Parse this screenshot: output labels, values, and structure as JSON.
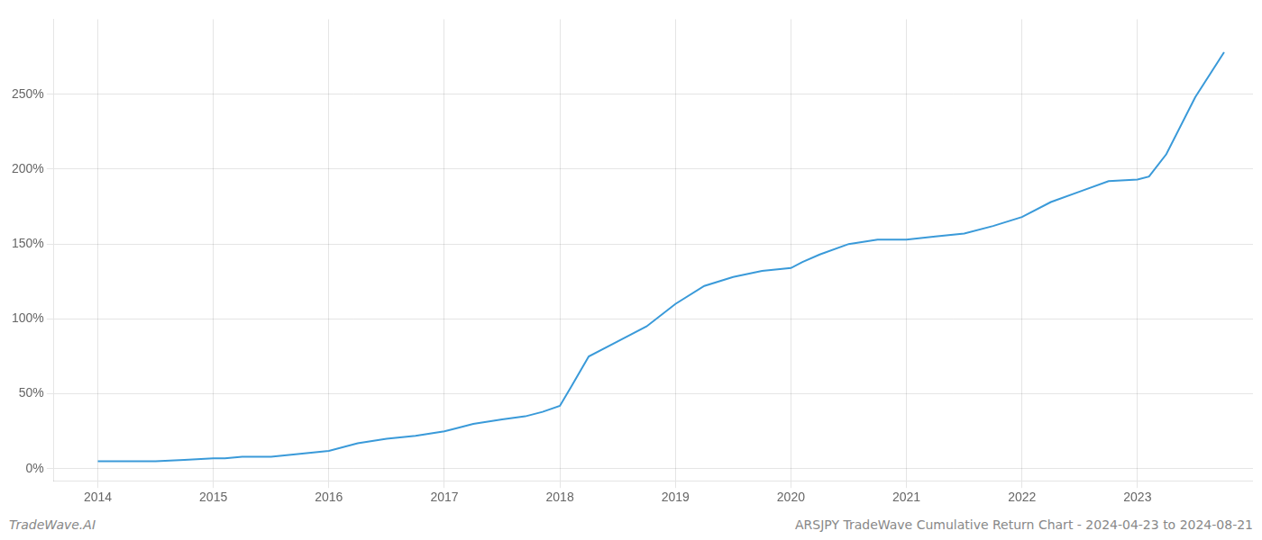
{
  "chart_data": {
    "type": "line",
    "title": "ARSJPY TradeWave Cumulative Return Chart - 2024-04-23 to 2024-08-21",
    "annotations": [
      "TradeWave.AI"
    ],
    "x": [
      2014.0,
      2014.15,
      2014.3,
      2014.5,
      2014.75,
      2015.0,
      2015.1,
      2015.25,
      2015.5,
      2015.75,
      2016.0,
      2016.25,
      2016.5,
      2016.75,
      2017.0,
      2017.1,
      2017.25,
      2017.5,
      2017.7,
      2017.85,
      2018.0,
      2018.1,
      2018.25,
      2018.5,
      2018.75,
      2019.0,
      2019.25,
      2019.5,
      2019.75,
      2020.0,
      2020.1,
      2020.25,
      2020.5,
      2020.75,
      2021.0,
      2021.25,
      2021.5,
      2021.75,
      2022.0,
      2022.25,
      2022.5,
      2022.75,
      2023.0,
      2023.1,
      2023.25,
      2023.5,
      2023.75
    ],
    "values": [
      5,
      5,
      5,
      5,
      6,
      7,
      7,
      8,
      8,
      10,
      12,
      17,
      20,
      22,
      25,
      27,
      30,
      33,
      35,
      38,
      42,
      55,
      75,
      85,
      95,
      110,
      122,
      128,
      132,
      134,
      138,
      143,
      150,
      153,
      153,
      155,
      157,
      162,
      168,
      178,
      185,
      192,
      193,
      195,
      210,
      248,
      278
    ],
    "color": "#3a9ad9",
    "xlim": [
      2013.62,
      2024.0
    ],
    "xticks": [
      2014,
      2015,
      2016,
      2017,
      2018,
      2019,
      2020,
      2021,
      2022,
      2023
    ],
    "ylim": [
      -8,
      300
    ],
    "yticks": [
      {
        "value": 0,
        "label": "0%"
      },
      {
        "value": 50,
        "label": "50%"
      },
      {
        "value": 100,
        "label": "100%"
      },
      {
        "value": 150,
        "label": "150%"
      },
      {
        "value": 200,
        "label": "200%"
      },
      {
        "value": 250,
        "label": "250%"
      }
    ],
    "grid": true
  }
}
